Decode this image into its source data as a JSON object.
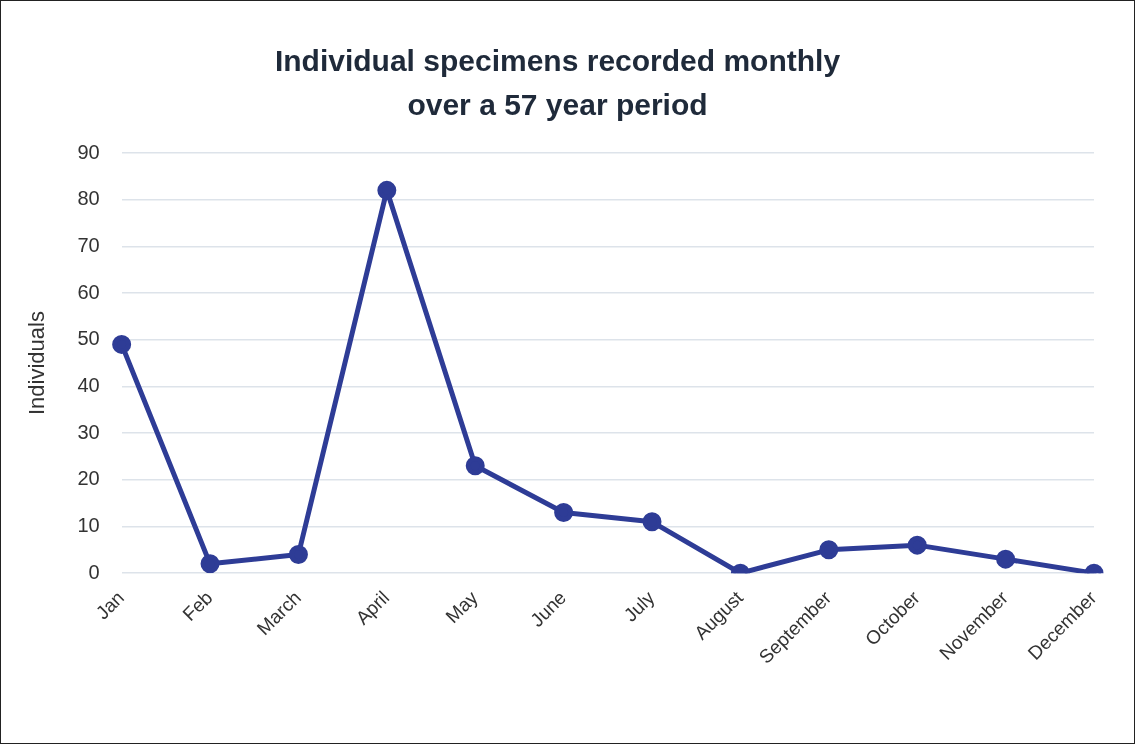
{
  "chart_data": {
    "type": "line",
    "title": "Individual specimens recorded monthly\nover a 57 year period",
    "ylabel": "Individuals",
    "categories": [
      "Jan",
      "Feb",
      "March",
      "April",
      "May",
      "June",
      "July",
      "August",
      "September",
      "October",
      "November",
      "December"
    ],
    "series": [
      {
        "color": "#2e3c96",
        "values": [
          49,
          2,
          4,
          82,
          23,
          13,
          11,
          0,
          5,
          6,
          3,
          0
        ]
      }
    ],
    "ylim": [
      0,
      90
    ],
    "yticks": [
      0,
      10,
      20,
      30,
      40,
      50,
      60,
      70,
      80,
      90
    ],
    "grid": "y",
    "legend": false,
    "marker": "circle",
    "line_style": "solid"
  }
}
